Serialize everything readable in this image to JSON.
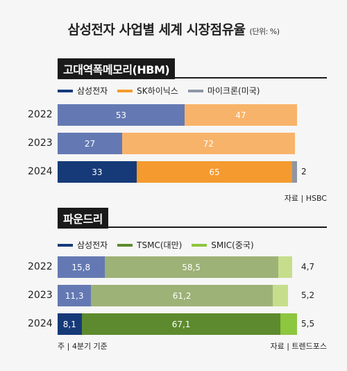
{
  "title": "삼성전자 사업별 세계 시장점유율",
  "unit": "(단위: %)",
  "chart_data": [
    {
      "type": "bar",
      "stacked": true,
      "orientation": "horizontal",
      "section_title": "고대역폭메모리(HBM)",
      "categories": [
        "2022",
        "2023",
        "2024"
      ],
      "series": [
        {
          "name": "삼성전자",
          "values": [
            53,
            27,
            33
          ],
          "labels": [
            "53",
            "27",
            "33"
          ],
          "colors": [
            "#6479b3",
            "#6479b3",
            "#163a78"
          ]
        },
        {
          "name": "SK하이닉스",
          "values": [
            47,
            72,
            65
          ],
          "labels": [
            "47",
            "72",
            "65"
          ],
          "colors": [
            "#f8b36a",
            "#f8b36a",
            "#f49a2f"
          ]
        },
        {
          "name": "마이크론(미국)",
          "values": [
            0,
            0,
            2
          ],
          "labels": [
            "",
            "",
            "2"
          ],
          "colors": [
            "#8e97a6",
            "#8e97a6",
            "#8e97a6"
          ]
        }
      ],
      "legend_colors": [
        "#163a78",
        "#f49a2f",
        "#8e97a6"
      ],
      "source": "자료 | HSBC"
    },
    {
      "type": "bar",
      "stacked": true,
      "orientation": "horizontal",
      "section_title": "파운드리",
      "categories": [
        "2022",
        "2023",
        "2024"
      ],
      "series": [
        {
          "name": "삼성전자",
          "values": [
            15.8,
            11.3,
            8.1
          ],
          "labels": [
            "15,8",
            "11,3",
            "8,1"
          ],
          "colors": [
            "#6479b3",
            "#6479b3",
            "#163a78"
          ]
        },
        {
          "name": "TSMC(대만)",
          "values": [
            58.5,
            61.2,
            67.1
          ],
          "labels": [
            "58,5",
            "61,2",
            "67,1"
          ],
          "colors": [
            "#9db277",
            "#9db277",
            "#5e8a2f"
          ]
        },
        {
          "name": "SMIC(중국)",
          "values": [
            4.7,
            5.2,
            5.5
          ],
          "labels": [
            "4,7",
            "5,2",
            "5,5"
          ],
          "colors": [
            "#c6de8c",
            "#c6de8c",
            "#8dc63f"
          ]
        }
      ],
      "legend_colors": [
        "#163a78",
        "#5e8a2f",
        "#8dc63f"
      ],
      "footnote": "주 | 4분기 기준",
      "source": "자료 | 트렌드포스"
    }
  ]
}
